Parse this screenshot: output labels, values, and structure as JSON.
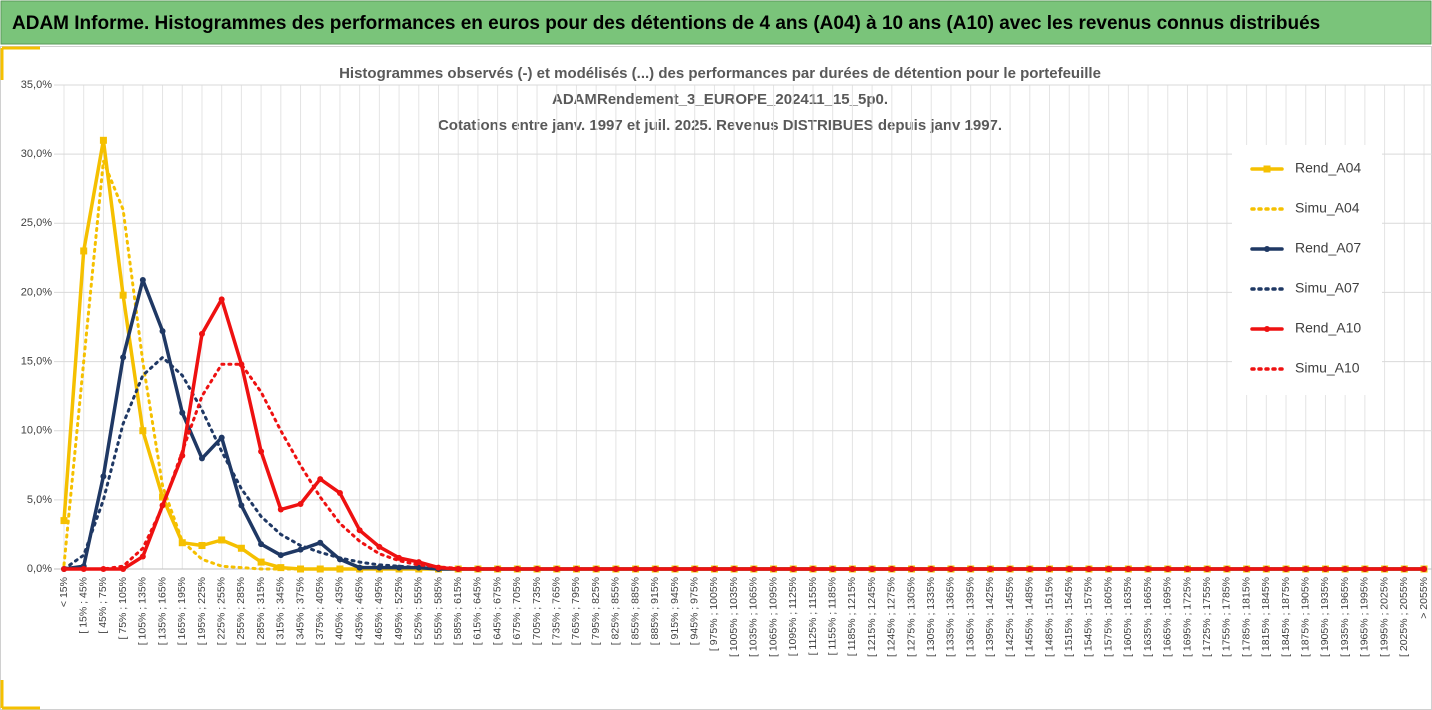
{
  "header": "ADAM Informe. Histogrammes des performances en euros pour des détentions de 4 ans (A04) à 10 ans (A10) avec les revenus connus distribués",
  "chart_data": {
    "type": "line",
    "title": [
      "Histogrammes observés (-) et modélisés (...) des performances par durées de détention pour le portefeuille",
      "ADAMRendement_3_EUROPE_202411_15_5p0.",
      "Cotations entre janv. 1997 et juil. 2025. Revenus DISTRIBUES depuis janv 1997."
    ],
    "categories": [
      "< 15%",
      "[ 15% ; 45%",
      "[ 45% ; 75%",
      "[ 75% ; 105%",
      "[ 105% ; 135%",
      "[ 135% ; 165%",
      "[ 165% ; 195%",
      "[ 195% ; 225%",
      "[ 225% ; 255%",
      "[ 255% ; 285%",
      "[ 285% ; 315%",
      "[ 315% ; 345%",
      "[ 345% ; 375%",
      "[ 375% ; 405%",
      "[ 405% ; 435%",
      "[ 435% ; 465%",
      "[ 465% ; 495%",
      "[ 495% ; 525%",
      "[ 525% ; 555%",
      "[ 555% ; 585%",
      "[ 585% ; 615%",
      "[ 615% ; 645%",
      "[ 645% ; 675%",
      "[ 675% ; 705%",
      "[ 705% ; 735%",
      "[ 735% ; 765%",
      "[ 765% ; 795%",
      "[ 795% ; 825%",
      "[ 825% ; 855%",
      "[ 855% ; 885%",
      "[ 885% ; 915%",
      "[ 915% ; 945%",
      "[ 945% ; 975%",
      "[ 975% ; 1005%",
      "[ 1005% ; 1035%",
      "[ 1035% ; 1065%",
      "[ 1065% ; 1095%",
      "[ 1095% ; 1125%",
      "[ 1125% ; 1155%",
      "[ 1155% ; 1185%",
      "[ 1185% ; 1215%",
      "[ 1215% ; 1245%",
      "[ 1245% ; 1275%",
      "[ 1275% ; 1305%",
      "[ 1305% ; 1335%",
      "[ 1335% ; 1365%",
      "[ 1365% ; 1395%",
      "[ 1395% ; 1425%",
      "[ 1425% ; 1455%",
      "[ 1455% ; 1485%",
      "[ 1485% ; 1515%",
      "[ 1515% ; 1545%",
      "[ 1545% ; 1575%",
      "[ 1575% ; 1605%",
      "[ 1605% ; 1635%",
      "[ 1635% ; 1665%",
      "[ 1665% ; 1695%",
      "[ 1695% ; 1725%",
      "[ 1725% ; 1755%",
      "[ 1755% ; 1785%",
      "[ 1785% ; 1815%",
      "[ 1815% ; 1845%",
      "[ 1845% ; 1875%",
      "[ 1875% ; 1905%",
      "[ 1905% ; 1935%",
      "[ 1935% ; 1965%",
      "[ 1965% ; 1995%",
      "[ 1995% ; 2025%",
      "[ 2025% ; 2055%",
      "> 2055%"
    ],
    "series": [
      {
        "name": "Rend_A04",
        "color": "#f5c000",
        "style": "solid",
        "marker": "square",
        "values": [
          3.5,
          23,
          31,
          19.8,
          10,
          5.2,
          1.9,
          1.7,
          2.1,
          1.5,
          0.5,
          0.1,
          0,
          0,
          0,
          0,
          0,
          0,
          0,
          0,
          0,
          0,
          0,
          0,
          0,
          0,
          0,
          0,
          0,
          0,
          0,
          0,
          0,
          0,
          0,
          0,
          0,
          0,
          0,
          0,
          0,
          0,
          0,
          0,
          0,
          0,
          0,
          0,
          0,
          0,
          0,
          0,
          0,
          0,
          0,
          0,
          0,
          0,
          0,
          0,
          0,
          0,
          0,
          0,
          0,
          0,
          0,
          0,
          0,
          0
        ]
      },
      {
        "name": "Simu_A04",
        "color": "#f5c000",
        "style": "dotted",
        "values": [
          0.3,
          15,
          29.5,
          26,
          15,
          6,
          2,
          0.7,
          0.2,
          0.1,
          0,
          0,
          0,
          0,
          0,
          0,
          0,
          0,
          0,
          0,
          0,
          0,
          0,
          0,
          0,
          0,
          0,
          0,
          0,
          0,
          0,
          0,
          0,
          0,
          0,
          0,
          0,
          0,
          0,
          0,
          0,
          0,
          0,
          0,
          0,
          0,
          0,
          0,
          0,
          0,
          0,
          0,
          0,
          0,
          0,
          0,
          0,
          0,
          0,
          0,
          0,
          0,
          0,
          0,
          0,
          0,
          0,
          0,
          0,
          0
        ]
      },
      {
        "name": "Rend_A07",
        "color": "#1f3864",
        "style": "solid",
        "marker": "circle",
        "values": [
          0,
          0.2,
          6.7,
          15.3,
          20.9,
          17.2,
          11.3,
          8,
          9.5,
          4.6,
          1.8,
          1,
          1.4,
          1.9,
          0.7,
          0.1,
          0.1,
          0.1,
          0.1,
          0,
          0,
          0,
          0,
          0,
          0,
          0,
          0,
          0,
          0,
          0,
          0,
          0,
          0,
          0,
          0,
          0,
          0,
          0,
          0,
          0,
          0,
          0,
          0,
          0,
          0,
          0,
          0,
          0,
          0,
          0,
          0,
          0,
          0,
          0,
          0,
          0,
          0,
          0,
          0,
          0,
          0,
          0,
          0,
          0,
          0,
          0,
          0,
          0,
          0,
          0
        ]
      },
      {
        "name": "Simu_A07",
        "color": "#1f3864",
        "style": "dotted",
        "values": [
          0,
          1,
          5,
          10.5,
          14,
          15.3,
          14,
          11.5,
          8.5,
          5.8,
          3.8,
          2.5,
          1.7,
          1.2,
          0.8,
          0.5,
          0.3,
          0.2,
          0.1,
          0,
          0,
          0,
          0,
          0,
          0,
          0,
          0,
          0,
          0,
          0,
          0,
          0,
          0,
          0,
          0,
          0,
          0,
          0,
          0,
          0,
          0,
          0,
          0,
          0,
          0,
          0,
          0,
          0,
          0,
          0,
          0,
          0,
          0,
          0,
          0,
          0,
          0,
          0,
          0,
          0,
          0,
          0,
          0,
          0,
          0,
          0,
          0,
          0,
          0,
          0
        ]
      },
      {
        "name": "Rend_A10",
        "color": "#ee1111",
        "style": "solid",
        "marker": "circle",
        "values": [
          0,
          0,
          0,
          0,
          0.9,
          4.6,
          8.2,
          17,
          19.5,
          14.8,
          8.5,
          4.3,
          4.7,
          6.5,
          5.5,
          2.8,
          1.6,
          0.8,
          0.5,
          0.1,
          0,
          0,
          0,
          0,
          0,
          0,
          0,
          0,
          0,
          0,
          0,
          0,
          0,
          0,
          0,
          0,
          0,
          0,
          0,
          0,
          0,
          0,
          0,
          0,
          0,
          0,
          0,
          0,
          0,
          0,
          0,
          0,
          0,
          0,
          0,
          0,
          0,
          0,
          0,
          0,
          0,
          0,
          0,
          0,
          0,
          0,
          0,
          0,
          0,
          0
        ]
      },
      {
        "name": "Simu_A10",
        "color": "#ee1111",
        "style": "dotted",
        "values": [
          0,
          0,
          0,
          0.2,
          1.5,
          4.5,
          8.5,
          12.5,
          14.8,
          14.8,
          12.8,
          10,
          7.5,
          5.2,
          3.3,
          2,
          1.1,
          0.6,
          0.3,
          0.15,
          0.05,
          0,
          0,
          0,
          0,
          0,
          0,
          0,
          0,
          0,
          0,
          0,
          0,
          0,
          0,
          0,
          0,
          0,
          0,
          0,
          0,
          0,
          0,
          0,
          0,
          0,
          0,
          0,
          0,
          0,
          0,
          0,
          0,
          0,
          0,
          0,
          0,
          0,
          0,
          0,
          0,
          0,
          0,
          0,
          0,
          0,
          0,
          0,
          0,
          0
        ]
      }
    ],
    "ylim": [
      0,
      35
    ],
    "yticks": [
      {
        "value": 0,
        "label": "0,0%"
      },
      {
        "value": 5,
        "label": "5,0%"
      },
      {
        "value": 10,
        "label": "10,0%"
      },
      {
        "value": 15,
        "label": "15,0%"
      },
      {
        "value": 20,
        "label": "20,0%"
      },
      {
        "value": 25,
        "label": "25,0%"
      },
      {
        "value": 30,
        "label": "30,0%"
      },
      {
        "value": 35,
        "label": "35,0%"
      }
    ],
    "grid": true,
    "legend": "right"
  }
}
